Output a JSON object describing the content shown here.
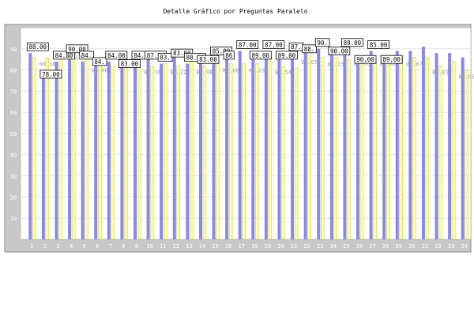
{
  "chart_data": {
    "type": "bar",
    "title": "Detalle Gráfico por Preguntas Paralelo",
    "xlabel": "",
    "ylabel": "",
    "ylim": [
      0,
      100
    ],
    "yticks": [
      10,
      20,
      30,
      40,
      50,
      60,
      70,
      80,
      90
    ],
    "grid": "horizontal",
    "legend": "none",
    "categories": [
      "1",
      "2",
      "3",
      "4",
      "5",
      "6",
      "7",
      "8",
      "9",
      "10",
      "11",
      "12",
      "13",
      "14",
      "15",
      "16",
      "17",
      "18",
      "19",
      "20",
      "21",
      "22",
      "23",
      "24",
      "25",
      "26",
      "27",
      "28",
      "29",
      "30",
      "31",
      "32",
      "33",
      "34"
    ],
    "series": [
      {
        "color": "#8a8ae6",
        "values": [
          88,
          78,
          84,
          90,
          84,
          84,
          84,
          83,
          84,
          87,
          83,
          88,
          83,
          85,
          86,
          87,
          89,
          87,
          89,
          87,
          88,
          90,
          90,
          89,
          90,
          85,
          89,
          85,
          89,
          89,
          91,
          88,
          88,
          86
        ]
      },
      {
        "color": "#ffff99",
        "values": [
          86,
          86,
          85,
          89,
          86,
          83,
          82,
          82,
          82,
          82,
          83,
          82,
          84,
          82,
          84,
          83,
          83,
          83,
          86,
          82,
          81,
          87,
          86,
          86,
          85,
          86,
          83,
          86,
          86,
          86,
          86,
          82,
          84,
          80
        ]
      }
    ],
    "boxed_labels": [
      "88.00",
      "78.00",
      "84.00",
      "90.00",
      "84.",
      "84.",
      "84.00",
      "83.00",
      "84.00",
      "87.00",
      "83.",
      "83.00",
      "88.00",
      "83.00",
      "85.00",
      "86",
      "87.00",
      "89.00",
      "87.00",
      "89.00",
      "87.",
      "88.",
      "90.",
      "90.00",
      "89.00",
      "90.00",
      "85.00",
      "89.00"
    ],
    "plain_labels": [
      "82.16",
      "84.22",
      "83.98",
      "82.08",
      "86.21",
      "83.54",
      "81.05",
      "82.15",
      "89.76",
      "83.00",
      "84.67",
      "85.01",
      "86.08",
      "80.38",
      "80.58",
      "80.06"
    ]
  }
}
